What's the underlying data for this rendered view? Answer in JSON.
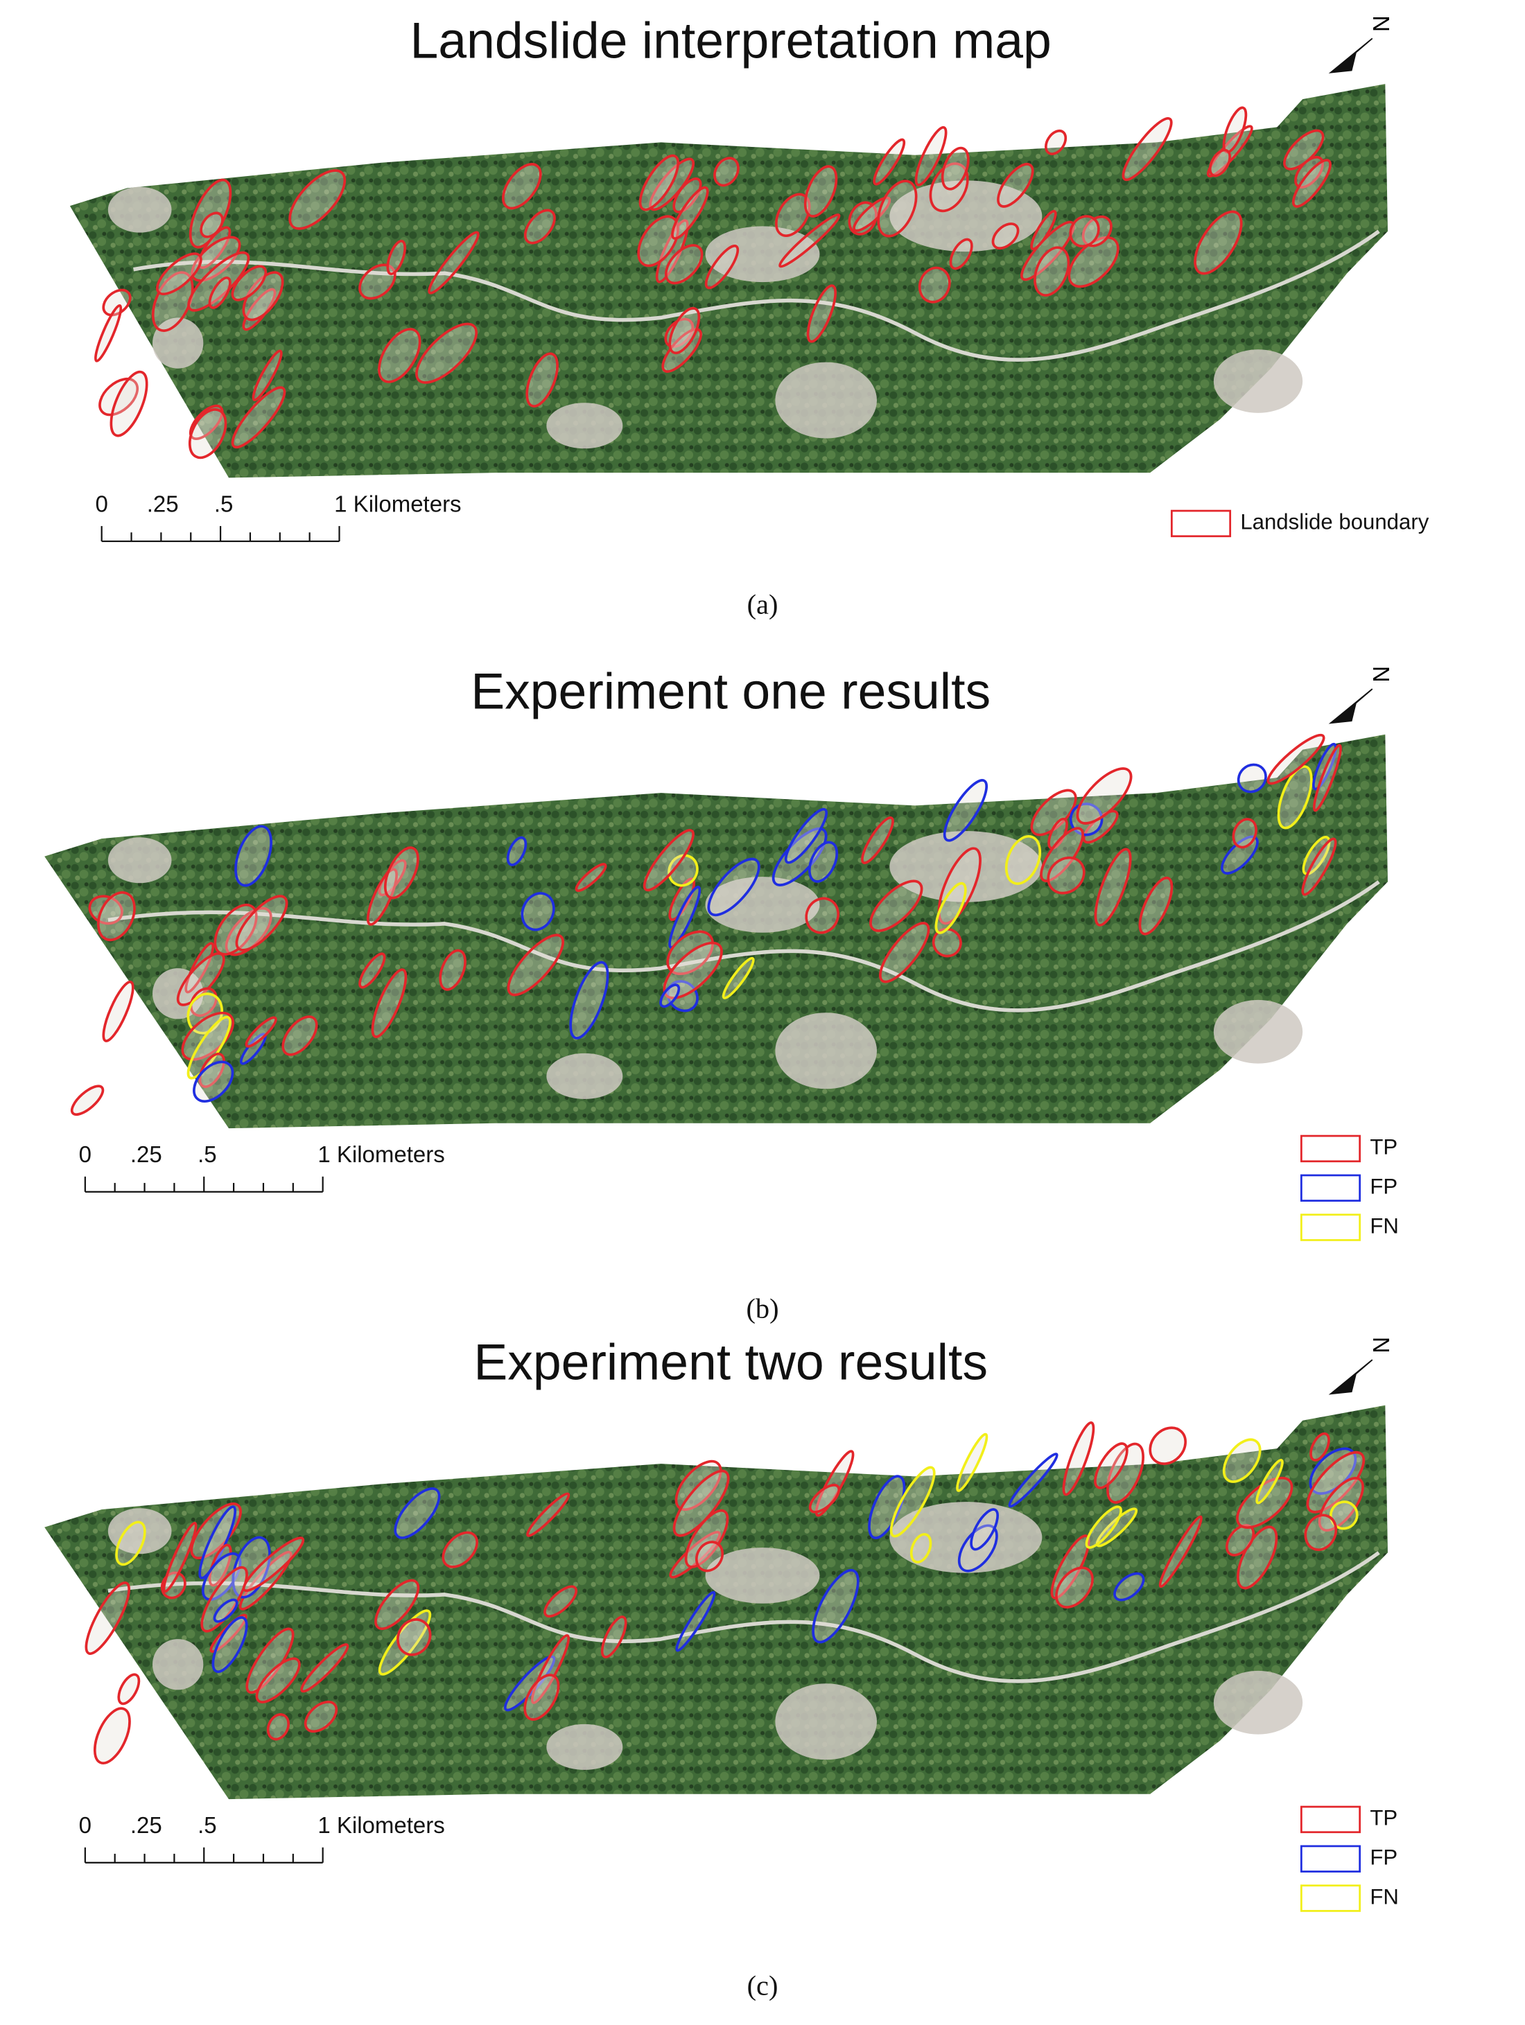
{
  "panels": [
    {
      "title": "Landslide interpretation map",
      "north": "N",
      "scale_labels": [
        "0",
        ".25",
        ".5",
        "1 Kilometers"
      ],
      "legend": [
        {
          "label": "Landslide boundary",
          "color": "#e3262b"
        }
      ],
      "caption": "(a)"
    },
    {
      "title": "Experiment one results",
      "north": "N",
      "scale_labels": [
        "0",
        ".25",
        ".5",
        "1 Kilometers"
      ],
      "legend": [
        {
          "label": "TP",
          "color": "#e3262b"
        },
        {
          "label": "FP",
          "color": "#1f2ee0"
        },
        {
          "label": "FN",
          "color": "#f2ef1a"
        }
      ],
      "caption": "(b)"
    },
    {
      "title": "Experiment two results",
      "north": "N",
      "scale_labels": [
        "0",
        ".25",
        ".5",
        "1 Kilometers"
      ],
      "legend": [
        {
          "label": "TP",
          "color": "#e3262b"
        },
        {
          "label": "FP",
          "color": "#1f2ee0"
        },
        {
          "label": "FN",
          "color": "#f2ef1a"
        }
      ],
      "caption": "(c)"
    }
  ]
}
